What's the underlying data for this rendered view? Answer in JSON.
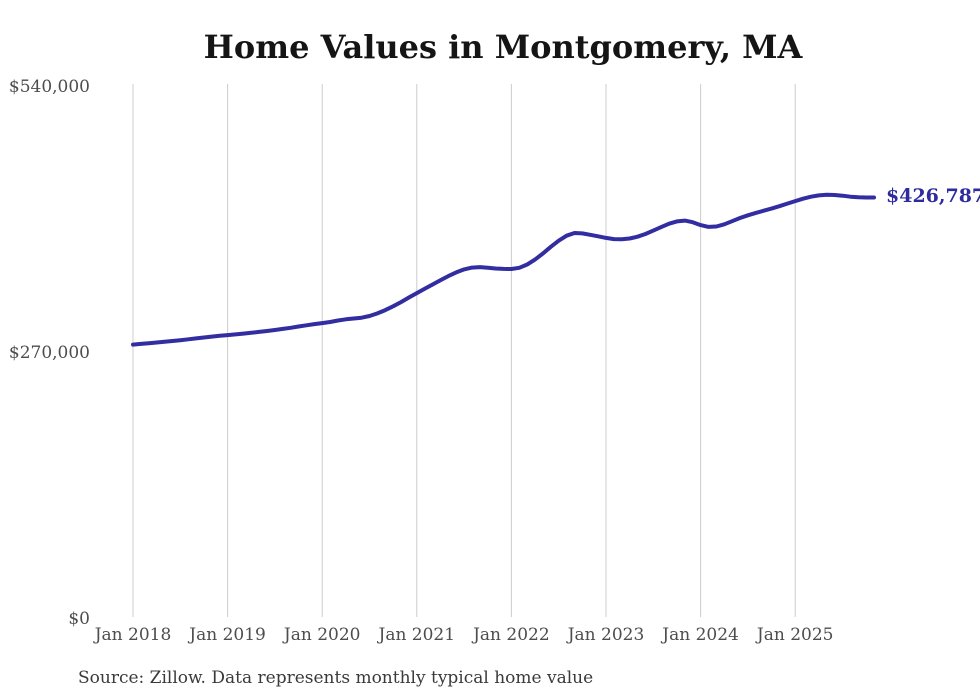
{
  "title": "Home Values in Montgomery, MA",
  "source_note": "Source: Zillow. Data represents monthly typical home value",
  "latest_value_label": "$426,787",
  "chart_data": {
    "type": "line",
    "title": "Home Values in Montgomery, MA",
    "xlabel": "",
    "ylabel": "",
    "ylim": [
      0,
      540000
    ],
    "y_tick_values": [
      0,
      270000,
      540000
    ],
    "y_tick_labels": [
      "$0",
      "$270,000",
      "$540,000"
    ],
    "x_tick_labels": [
      "Jan 2018",
      "Jan 2019",
      "Jan 2020",
      "Jan 2021",
      "Jan 2022",
      "Jan 2023",
      "Jan 2024",
      "Jan 2025"
    ],
    "grid": "vertical-only",
    "legend_position": "none",
    "end_label": "$426,787",
    "final_value": 426787,
    "series": [
      {
        "name": "Typical home value (monthly)",
        "x_start": "2018-01",
        "x_end": "2025-11",
        "x_interval": "month",
        "values": [
          277500,
          278200,
          278900,
          279600,
          280400,
          281200,
          282000,
          282900,
          283800,
          284700,
          285600,
          286400,
          287200,
          287900,
          288700,
          289500,
          290400,
          291300,
          292300,
          293400,
          294600,
          295900,
          297100,
          298300,
          299300,
          300500,
          302000,
          303200,
          304000,
          304800,
          306500,
          309200,
          312500,
          316400,
          320700,
          325300,
          329800,
          334200,
          338500,
          342800,
          347000,
          350800,
          353800,
          355700,
          356200,
          355600,
          354800,
          354300,
          354200,
          355500,
          358800,
          363800,
          370000,
          376800,
          383000,
          388000,
          390800,
          390400,
          389000,
          387400,
          385800,
          384600,
          384400,
          385200,
          387000,
          389800,
          393200,
          396800,
          400200,
          402600,
          403400,
          401800,
          398800,
          397000,
          397400,
          399600,
          402800,
          406000,
          408800,
          411200,
          413400,
          415600,
          418000,
          420600,
          423200,
          425600,
          427600,
          429000,
          429600,
          429400,
          428600,
          427600,
          427000,
          426850,
          426787
        ]
      }
    ],
    "colors": {
      "line": "#322da0",
      "grid": "#cccccc",
      "tick_labels": "#4d4d4d",
      "annotation": "#2f2b9e",
      "title": "#151515",
      "source": "#3a3a3a"
    }
  }
}
